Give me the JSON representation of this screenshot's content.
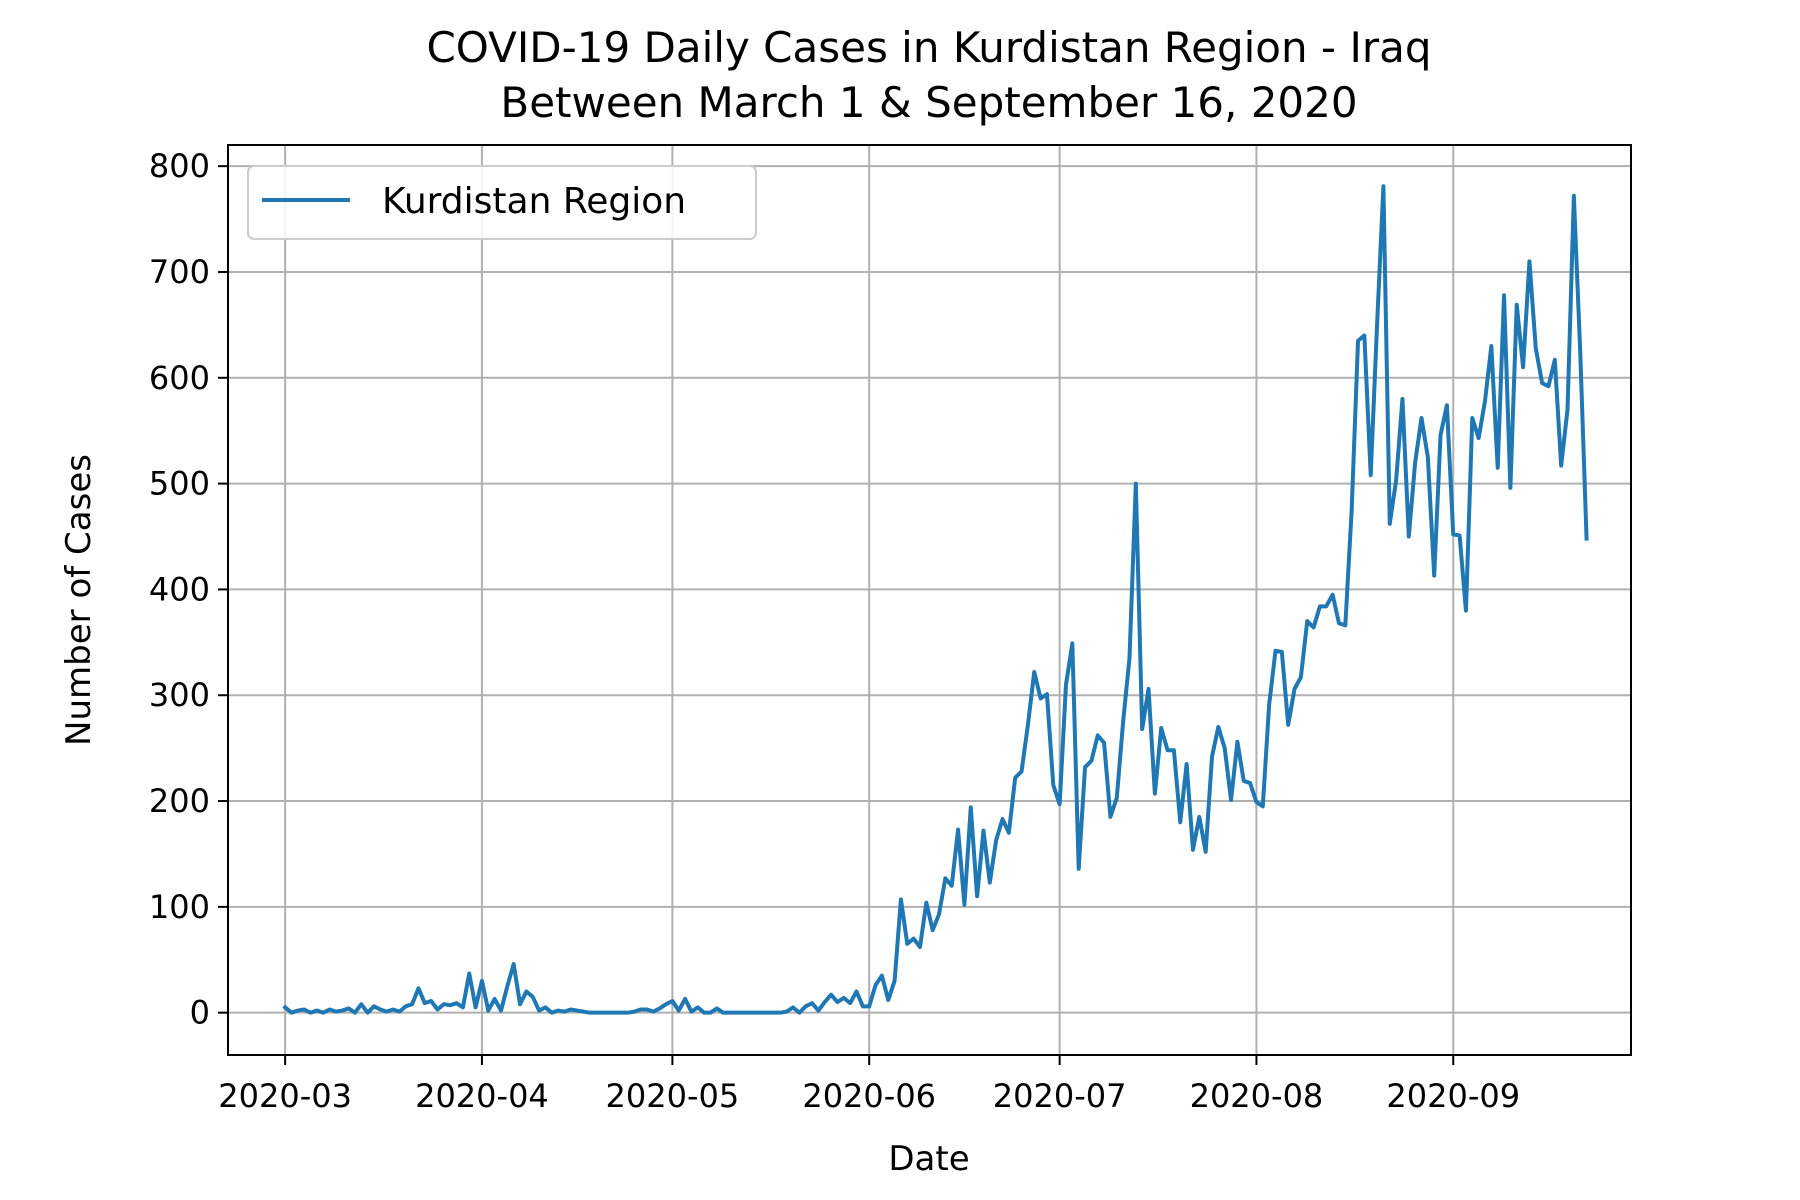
{
  "chart_data": {
    "type": "line",
    "title": "COVID-19 Daily Cases in Kurdistan Region - Iraq",
    "subtitle": "Between March 1 & September 16, 2020",
    "xlabel": "Date",
    "ylabel": "Number of Cases",
    "x_start": "2020-03-01",
    "x_end": "2020-09-16",
    "x_range": [
      "2020-02-21",
      "2020-09-29"
    ],
    "ylim": [
      -40,
      820
    ],
    "x_ticks": [
      {
        "date": "2020-03-01",
        "label": "2020-03"
      },
      {
        "date": "2020-04-01",
        "label": "2020-04"
      },
      {
        "date": "2020-05-01",
        "label": "2020-05"
      },
      {
        "date": "2020-06-01",
        "label": "2020-06"
      },
      {
        "date": "2020-07-01",
        "label": "2020-07"
      },
      {
        "date": "2020-08-01",
        "label": "2020-08"
      },
      {
        "date": "2020-09-01",
        "label": "2020-09"
      }
    ],
    "y_ticks": [
      0,
      100,
      200,
      300,
      400,
      500,
      600,
      700,
      800
    ],
    "grid": true,
    "legend": "upper-left",
    "series": [
      {
        "name": "Kurdistan Region",
        "color": "#1f77b4",
        "values": [
          5,
          0,
          2,
          3,
          0,
          2,
          0,
          3,
          1,
          2,
          4,
          0,
          8,
          0,
          6,
          3,
          1,
          3,
          1,
          6,
          8,
          23,
          9,
          11,
          3,
          8,
          7,
          9,
          5,
          37,
          5,
          30,
          2,
          13,
          2,
          25,
          46,
          8,
          20,
          15,
          2,
          5,
          0,
          2,
          1,
          3,
          2,
          1,
          0,
          0,
          0,
          0,
          0,
          0,
          0,
          1,
          3,
          3,
          1,
          4,
          8,
          11,
          2,
          13,
          1,
          5,
          0,
          0,
          4,
          0,
          0,
          0,
          0,
          0,
          0,
          0,
          0,
          0,
          0,
          1,
          5,
          0,
          6,
          9,
          2,
          10,
          17,
          10,
          14,
          9,
          20,
          6,
          6,
          26,
          35,
          12,
          30,
          107,
          65,
          70,
          62,
          104,
          78,
          93,
          127,
          120,
          173,
          102,
          194,
          110,
          172,
          123,
          163,
          183,
          170,
          222,
          228,
          272,
          322,
          297,
          301,
          215,
          197,
          310,
          349,
          136,
          232,
          238,
          262,
          255,
          185,
          203,
          275,
          335,
          500,
          268,
          306,
          207,
          269,
          248,
          248,
          180,
          235,
          154,
          185,
          152,
          242,
          270,
          250,
          201,
          256,
          219,
          217,
          199,
          195,
          291,
          342,
          341,
          272,
          306,
          317,
          370,
          364,
          384,
          384,
          395,
          368,
          366,
          475,
          635,
          640,
          508,
          650,
          781,
          462,
          503,
          580,
          450,
          520,
          562,
          525,
          413,
          546,
          574,
          452,
          451,
          380,
          562,
          543,
          578,
          630,
          515,
          678,
          496,
          669,
          610,
          710,
          628,
          595,
          592,
          617,
          517,
          570,
          772,
          625,
          448
        ]
      }
    ]
  }
}
